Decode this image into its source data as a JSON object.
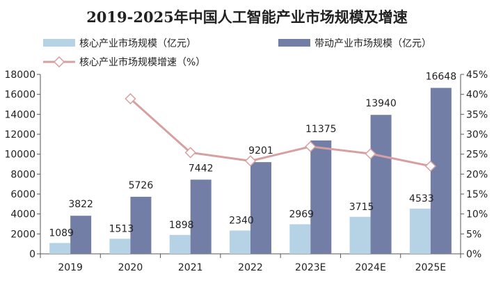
{
  "chart_data": {
    "type": "bar",
    "title": "2019-2025年中国人工智能产业市场规模及增速",
    "categories": [
      "2019",
      "2020",
      "2021",
      "2022",
      "2023E",
      "2024E",
      "2025E"
    ],
    "series": [
      {
        "name": "核心产业市场规模（亿元）",
        "type": "bar",
        "axis": "left",
        "values": [
          1089,
          1513,
          1898,
          2340,
          2969,
          3715,
          4533
        ],
        "color": "#b6d3e6"
      },
      {
        "name": "带动产业市场规模（亿元）",
        "type": "bar",
        "axis": "left",
        "values": [
          3822,
          5726,
          7442,
          9201,
          11375,
          13940,
          16648
        ],
        "color": "#737ea6"
      },
      {
        "name": "核心产业市场规模增速（%）",
        "type": "line",
        "axis": "right",
        "values": [
          null,
          38.9,
          25.4,
          23.3,
          26.9,
          25.1,
          22.0
        ],
        "color": "#d7a0a0"
      }
    ],
    "left_axis": {
      "min": 0,
      "max": 18000,
      "step": 2000,
      "ticks": [
        "0",
        "2000",
        "4000",
        "6000",
        "8000",
        "10000",
        "12000",
        "14000",
        "16000",
        "18000"
      ]
    },
    "right_axis": {
      "min": 0,
      "max": 45,
      "step": 5,
      "ticks": [
        "0%",
        "5%",
        "10%",
        "15%",
        "20%",
        "25%",
        "30%",
        "35%",
        "40%",
        "45%"
      ]
    },
    "legend_placement": "top",
    "grid": false
  }
}
